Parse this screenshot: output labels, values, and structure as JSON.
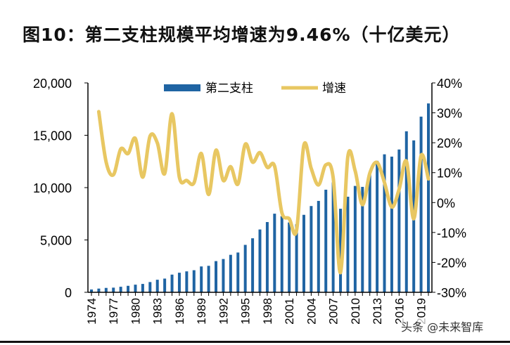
{
  "title": "图10：第二支柱规模平均增速为9.46%（十亿美元）",
  "watermark": "头条 @未来智库",
  "chart_data": {
    "type": "bar+line",
    "title": "图10：第二支柱规模平均增速为9.46%（十亿美元）",
    "x": [
      1974,
      1975,
      1976,
      1977,
      1978,
      1979,
      1980,
      1981,
      1982,
      1983,
      1984,
      1985,
      1986,
      1987,
      1988,
      1989,
      1990,
      1991,
      1992,
      1993,
      1994,
      1995,
      1996,
      1997,
      1998,
      1999,
      2000,
      2001,
      2002,
      2003,
      2004,
      2005,
      2006,
      2007,
      2008,
      2009,
      2010,
      2011,
      2012,
      2013,
      2014,
      2015,
      2016,
      2017,
      2018,
      2019,
      2020
    ],
    "x_tick_labels": [
      "1974",
      "1977",
      "1980",
      "1983",
      "1986",
      "1989",
      "1992",
      "1995",
      "1998",
      "2001",
      "2004",
      "2007",
      "2010",
      "2013",
      "2016",
      "2019"
    ],
    "y_left": {
      "range": [
        0,
        20000
      ],
      "tick_labels": [
        "0",
        "5,000",
        "10,000",
        "15,000",
        "20,000"
      ],
      "ticks": [
        0,
        5000,
        10000,
        15000,
        20000
      ]
    },
    "y_right": {
      "range": [
        -30,
        40
      ],
      "tick_labels": [
        "-30%",
        "-20%",
        "-10%",
        "0%",
        "10%",
        "20%",
        "30%",
        "40%"
      ],
      "ticks": [
        -30,
        -20,
        -10,
        0,
        10,
        20,
        30,
        40
      ]
    },
    "legend_position": "top-center",
    "grid": false,
    "series": [
      {
        "name": "第二支柱",
        "type": "bar",
        "axis": "left",
        "color": "#1F64A3",
        "values": [
          270,
          355,
          420,
          445,
          530,
          620,
          730,
          800,
          980,
          1200,
          1310,
          1690,
          1870,
          2000,
          2110,
          2470,
          2530,
          2980,
          3180,
          3580,
          3800,
          4530,
          5160,
          6000,
          6710,
          7510,
          7270,
          6670,
          6500,
          7400,
          8240,
          8730,
          9800,
          10500,
          7980,
          9130,
          10160,
          10070,
          11500,
          12560,
          13180,
          12960,
          13640,
          15380,
          14510,
          16780,
          18040
        ]
      },
      {
        "name": "增速",
        "type": "line",
        "axis": "right",
        "color": "#E8C762",
        "values": [
          null,
          30.4,
          13.6,
          9.3,
          17.9,
          16.4,
          21.4,
          8.5,
          22.2,
          19.9,
          9.7,
          29.7,
          8.5,
          7.4,
          6.6,
          16.4,
          2.7,
          17.5,
          7.4,
          12.0,
          6.2,
          19.5,
          13.5,
          16.7,
          11.8,
          12.2,
          -3.4,
          -5.4,
          -9.3,
          19.2,
          11.4,
          5.9,
          12.6,
          8.3,
          -23.4,
          15.3,
          10.6,
          -0.7,
          9.8,
          13.4,
          6.7,
          -1.5,
          4.4,
          13.8,
          -5.4,
          15.7,
          7.9
        ]
      }
    ]
  }
}
